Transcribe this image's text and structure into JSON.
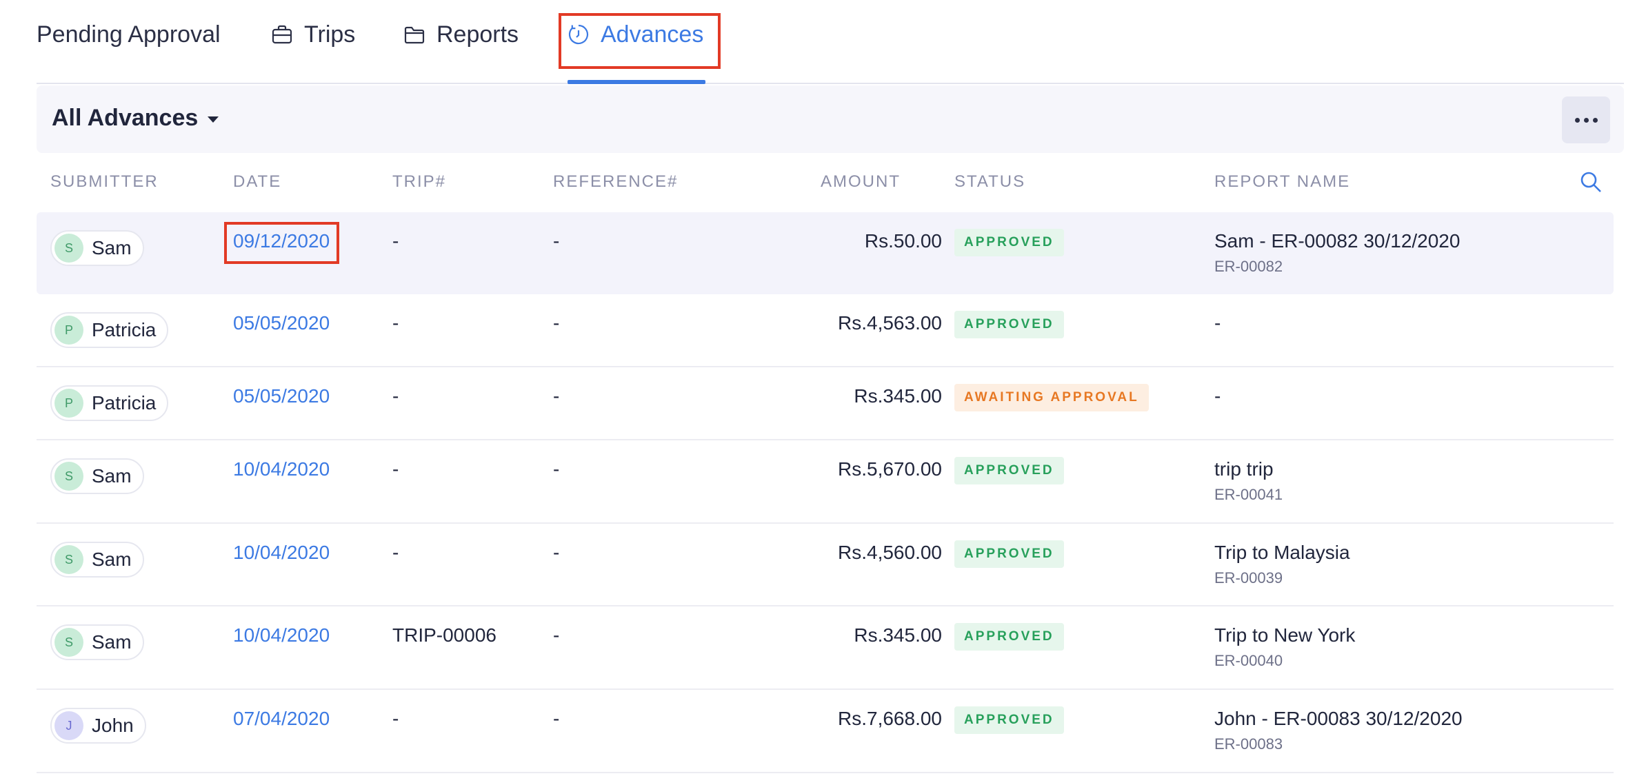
{
  "tabs": {
    "pending_approval": "Pending Approval",
    "trips": "Trips",
    "reports": "Reports",
    "advances": "Advances"
  },
  "header": {
    "view_label": "All Advances"
  },
  "columns": {
    "submitter": "SUBMITTER",
    "date": "DATE",
    "trip": "TRIP#",
    "reference": "REFERENCE#",
    "amount": "AMOUNT",
    "status": "STATUS",
    "report_name": "REPORT NAME"
  },
  "colors": {
    "accent": "#3c7ae3",
    "highlight": "#e23a25",
    "approved": "#27a05b",
    "awaiting": "#e77823"
  },
  "rows": [
    {
      "initial": "S",
      "submitter": "Sam",
      "date": "09/12/2020",
      "trip": "-",
      "reference": "-",
      "amount": "Rs.50.00",
      "status": "APPROVED",
      "report_name": "Sam - ER-00082 30/12/2020",
      "report_id": "ER-00082"
    },
    {
      "initial": "P",
      "submitter": "Patricia",
      "date": "05/05/2020",
      "trip": "-",
      "reference": "-",
      "amount": "Rs.4,563.00",
      "status": "APPROVED",
      "report_name": "-",
      "report_id": ""
    },
    {
      "initial": "P",
      "submitter": "Patricia",
      "date": "05/05/2020",
      "trip": "-",
      "reference": "-",
      "amount": "Rs.345.00",
      "status": "AWAITING APPROVAL",
      "report_name": "-",
      "report_id": ""
    },
    {
      "initial": "S",
      "submitter": "Sam",
      "date": "10/04/2020",
      "trip": "-",
      "reference": "-",
      "amount": "Rs.5,670.00",
      "status": "APPROVED",
      "report_name": "trip trip",
      "report_id": "ER-00041"
    },
    {
      "initial": "S",
      "submitter": "Sam",
      "date": "10/04/2020",
      "trip": "-",
      "reference": "-",
      "amount": "Rs.4,560.00",
      "status": "APPROVED",
      "report_name": "Trip to Malaysia",
      "report_id": "ER-00039"
    },
    {
      "initial": "S",
      "submitter": "Sam",
      "date": "10/04/2020",
      "trip": "TRIP-00006",
      "reference": "-",
      "amount": "Rs.345.00",
      "status": "APPROVED",
      "report_name": "Trip to New York",
      "report_id": "ER-00040"
    },
    {
      "initial": "J",
      "submitter": "John",
      "date": "07/04/2020",
      "trip": "-",
      "reference": "-",
      "amount": "Rs.7,668.00",
      "status": "APPROVED",
      "report_name": "John - ER-00083 30/12/2020",
      "report_id": "ER-00083"
    }
  ]
}
